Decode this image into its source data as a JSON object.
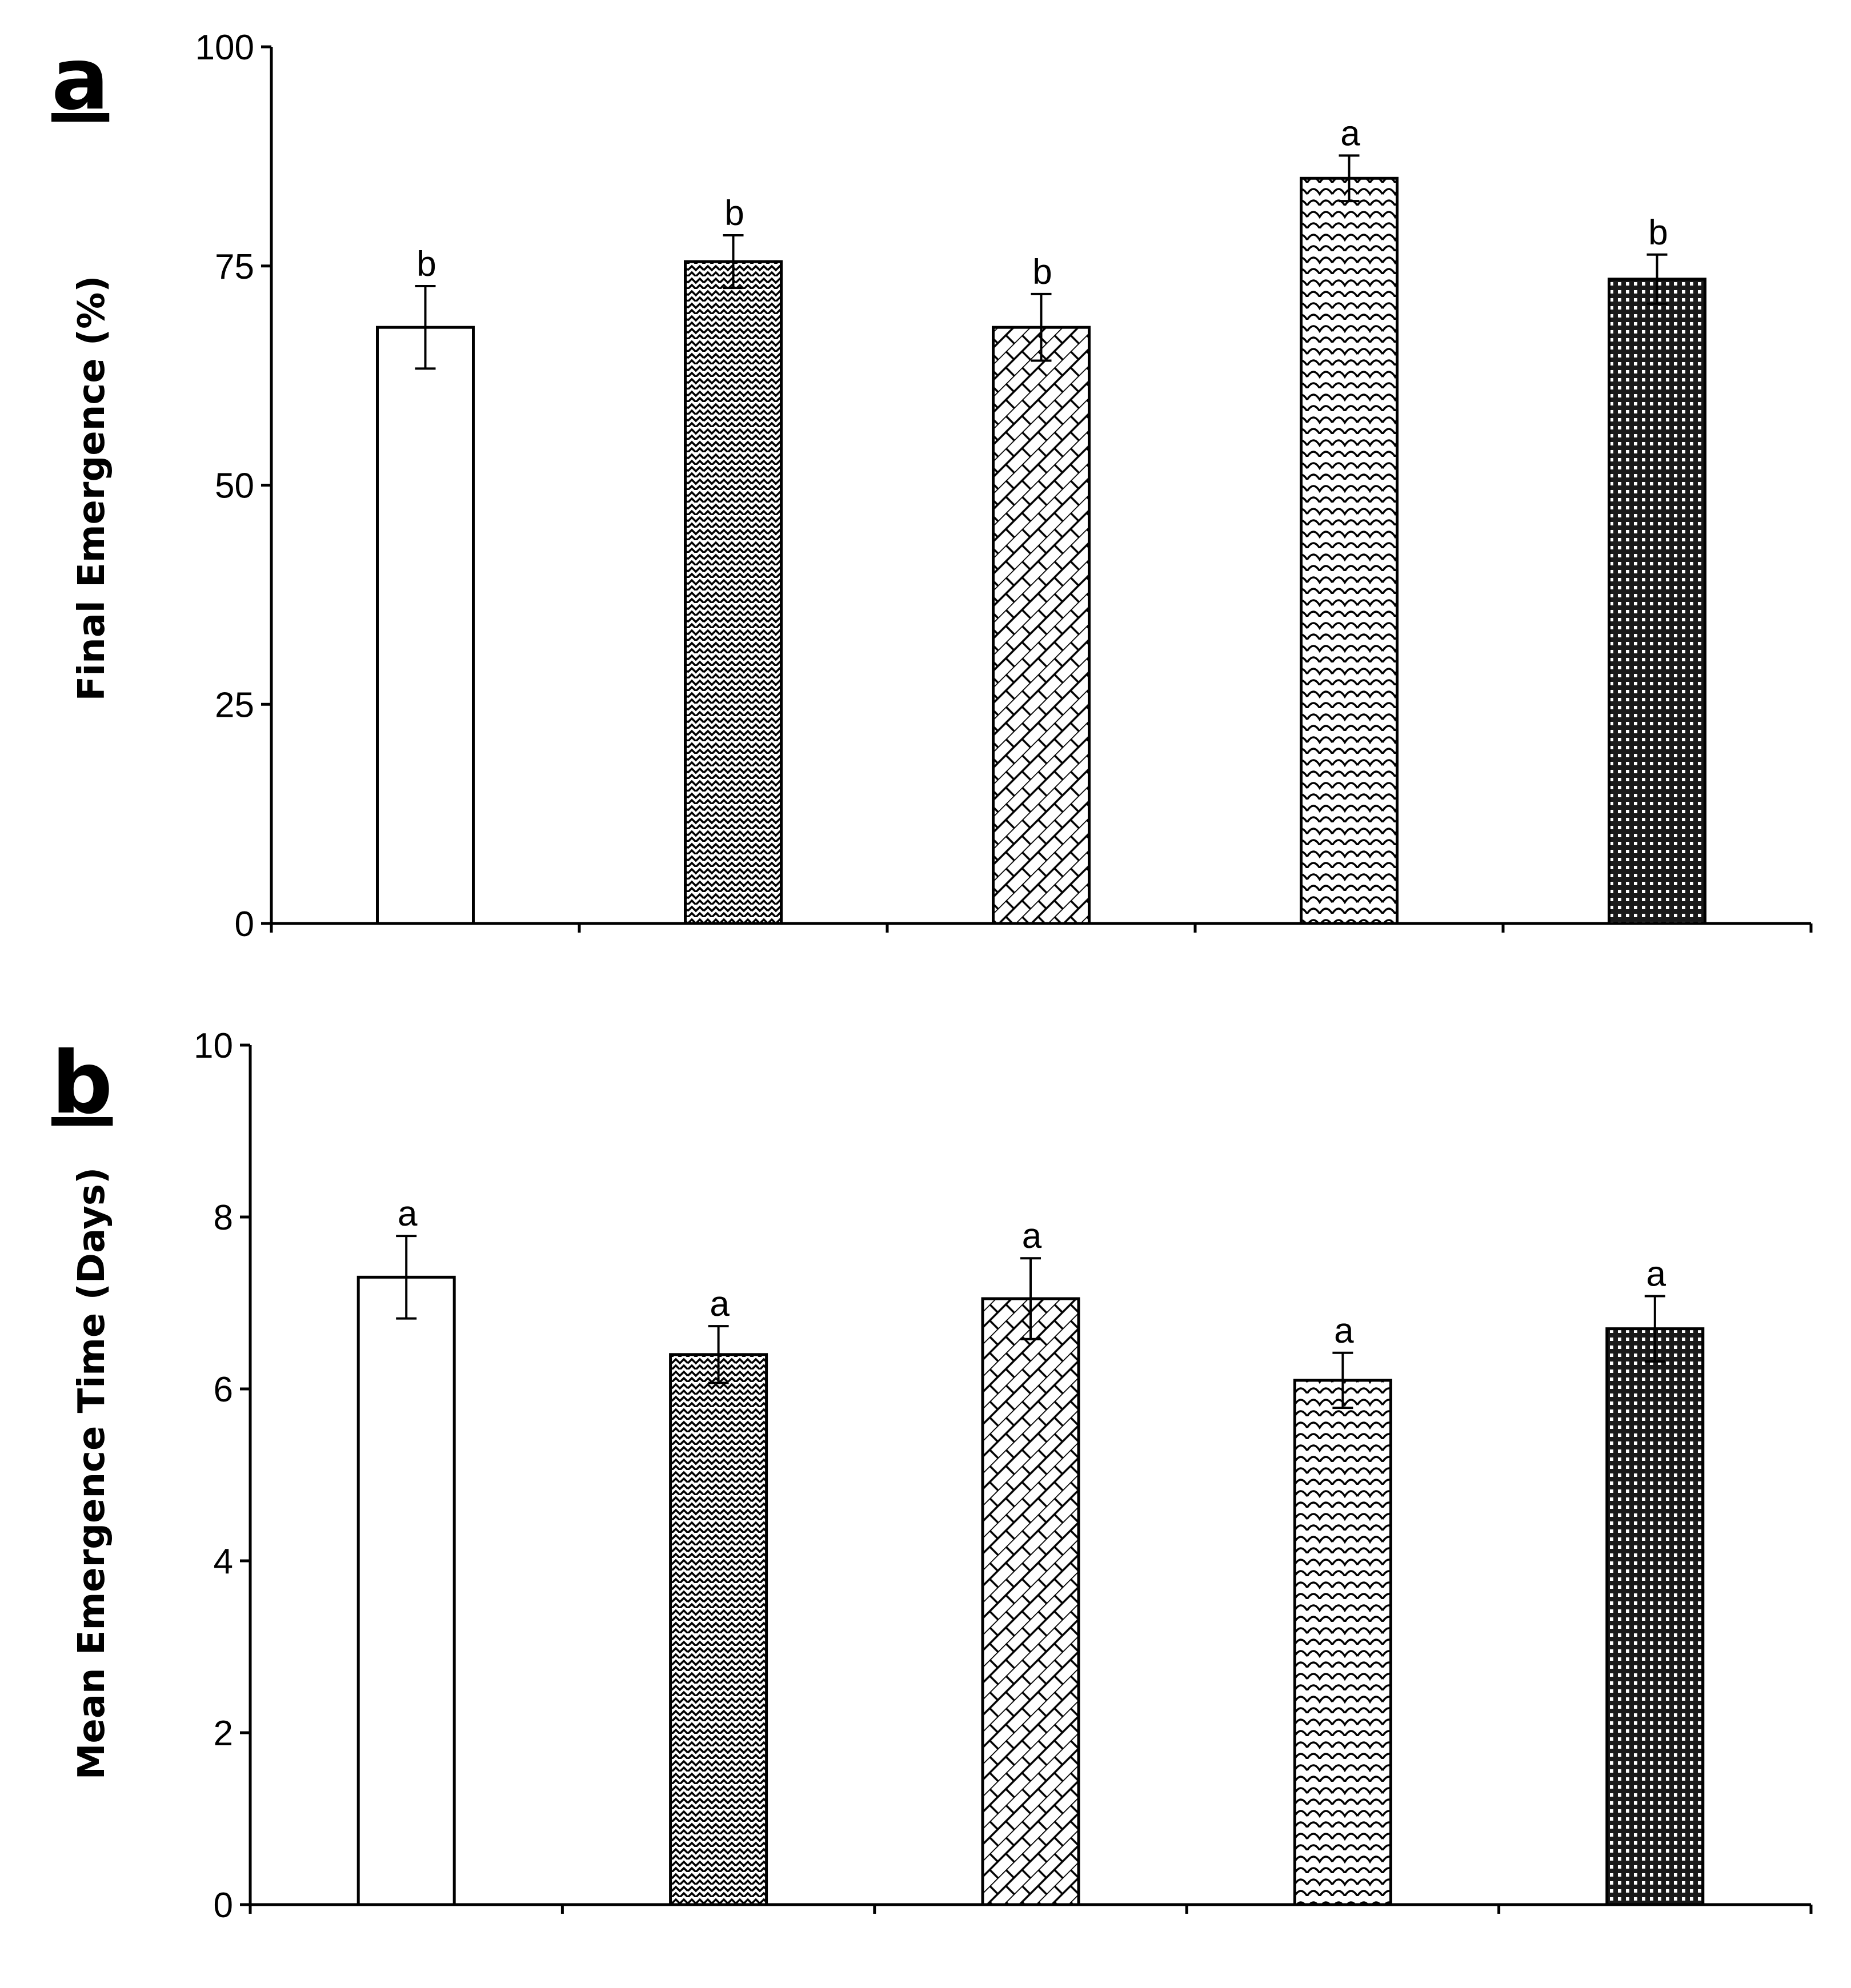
{
  "figure": {
    "pattern_colors": {
      "stroke": "#000000",
      "background": "#ffffff",
      "dense_fill": "#1a1a1a"
    }
  },
  "chart_data": [
    {
      "type": "bar",
      "panel_label": "a",
      "title": "",
      "xlabel": "",
      "ylabel": "Final Emergence (%)",
      "ylim": [
        0,
        100
      ],
      "yticks": [
        0,
        25,
        50,
        75,
        100
      ],
      "ytick_labels": [
        "0",
        "25",
        "50",
        "75",
        "100"
      ],
      "categories": [
        "",
        "",
        "",
        "",
        ""
      ],
      "patterns": [
        "none",
        "zigzag",
        "brick-diagonal",
        "scale",
        "dense-grid"
      ],
      "values": [
        68,
        75.5,
        68,
        85,
        73.5
      ],
      "errors": [
        4.7,
        3.0,
        3.8,
        2.6,
        2.8
      ],
      "sig_letters": [
        "b",
        "b",
        "b",
        "a",
        "b"
      ]
    },
    {
      "type": "bar",
      "panel_label": "b",
      "title": "",
      "xlabel": "",
      "ylabel": "Mean Emergence Time (Days)",
      "ylim": [
        0,
        10
      ],
      "yticks": [
        0,
        2,
        4,
        6,
        8,
        10
      ],
      "ytick_labels": [
        "0",
        "2",
        "4",
        "6",
        "8",
        "10"
      ],
      "categories": [
        "",
        "",
        "",
        "",
        ""
      ],
      "patterns": [
        "none",
        "zigzag",
        "brick-diagonal",
        "scale",
        "dense-grid"
      ],
      "values": [
        7.3,
        6.4,
        7.05,
        6.1,
        6.7
      ],
      "errors": [
        0.48,
        0.33,
        0.47,
        0.32,
        0.38
      ],
      "sig_letters": [
        "a",
        "a",
        "a",
        "a",
        "a"
      ]
    }
  ]
}
